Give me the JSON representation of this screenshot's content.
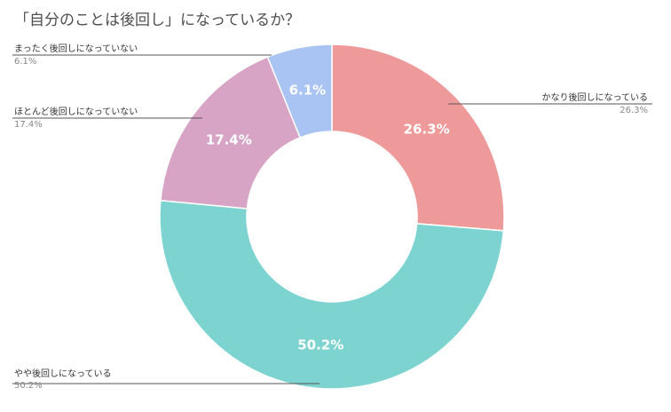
{
  "chart_data": {
    "type": "pie",
    "title": "「自分のことは後回し」になっているか？",
    "donut": true,
    "slices": [
      {
        "name": "かなり後回しになっている",
        "value": 26.3,
        "label": "26.3%",
        "value_label": "26.3%",
        "color": "#ef9a9a"
      },
      {
        "name": "やや後回しになっている",
        "value": 50.2,
        "label": "50.2%",
        "value_label": "50.2%",
        "color": "#7dd3cf"
      },
      {
        "name": "ほとんど後回しになっていない",
        "value": 17.4,
        "label": "17.4%",
        "value_label": "17.4%",
        "color": "#d8a4c6"
      },
      {
        "name": "まったく後回しになっていない",
        "value": 6.1,
        "label": "6.1%",
        "value_label": "6.1%",
        "color": "#a9c4f2"
      }
    ]
  }
}
